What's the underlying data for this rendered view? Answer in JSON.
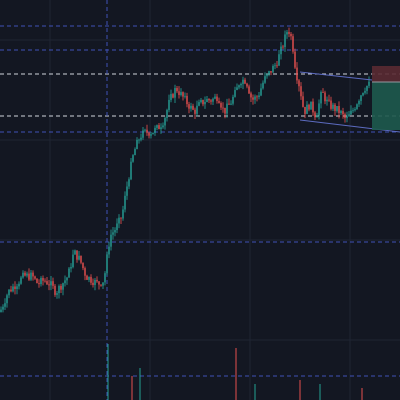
{
  "colors": {
    "background": "#131722",
    "grid": "#1f2433",
    "up": "#26a69a",
    "down": "#ef5350",
    "horizontal_line_blue": "#3f51b5",
    "horizontal_line_white": "#d1d4dc",
    "vertical_line": "#3f51b5",
    "channel_line": "#5c6bc0",
    "position_profit": "#1e5a4e",
    "position_loss": "#5a2a32"
  },
  "chart_data": {
    "type": "candlestick",
    "xlabel": "",
    "ylabel": "",
    "grid": true,
    "ylim": [
      0,
      100
    ],
    "trend": [
      [
        0,
        22
      ],
      [
        8,
        27
      ],
      [
        16,
        29
      ],
      [
        24,
        31
      ],
      [
        32,
        31
      ],
      [
        38,
        29
      ],
      [
        44,
        30
      ],
      [
        50,
        29
      ],
      [
        56,
        27
      ],
      [
        62,
        29
      ],
      [
        68,
        31
      ],
      [
        74,
        37
      ],
      [
        80,
        35
      ],
      [
        86,
        31
      ],
      [
        92,
        30
      ],
      [
        98,
        29
      ],
      [
        104,
        30
      ],
      [
        110,
        41
      ],
      [
        116,
        43
      ],
      [
        122,
        46
      ],
      [
        128,
        55
      ],
      [
        134,
        62
      ],
      [
        140,
        66
      ],
      [
        146,
        67
      ],
      [
        152,
        67
      ],
      [
        158,
        68
      ],
      [
        164,
        70
      ],
      [
        170,
        75
      ],
      [
        176,
        78
      ],
      [
        182,
        76
      ],
      [
        188,
        74
      ],
      [
        194,
        72
      ],
      [
        200,
        74
      ],
      [
        206,
        75
      ],
      [
        212,
        75
      ],
      [
        218,
        76
      ],
      [
        224,
        72
      ],
      [
        230,
        74
      ],
      [
        236,
        77
      ],
      [
        240,
        80
      ],
      [
        246,
        80
      ],
      [
        252,
        75
      ],
      [
        258,
        76
      ],
      [
        264,
        80
      ],
      [
        270,
        82
      ],
      [
        276,
        84
      ],
      [
        282,
        88
      ],
      [
        288,
        93
      ],
      [
        292,
        90
      ],
      [
        296,
        82
      ],
      [
        300,
        78
      ],
      [
        304,
        72
      ],
      [
        310,
        74
      ],
      [
        316,
        71
      ],
      [
        322,
        77
      ],
      [
        328,
        74
      ],
      [
        334,
        73
      ],
      [
        340,
        72
      ],
      [
        346,
        70
      ],
      [
        352,
        72
      ],
      [
        358,
        75
      ],
      [
        364,
        78
      ],
      [
        370,
        79
      ]
    ],
    "volume_spikes": [
      {
        "x": 108,
        "v": 14
      },
      {
        "x": 132,
        "v": 6
      },
      {
        "x": 140,
        "v": 8
      },
      {
        "x": 236,
        "v": 13
      },
      {
        "x": 255,
        "v": 4
      },
      {
        "x": 300,
        "v": 5
      },
      {
        "x": 320,
        "v": 4
      },
      {
        "x": 362,
        "v": 3
      }
    ],
    "horizontal_levels": [
      {
        "y": 93.5,
        "style": "dashed",
        "color": "horizontal_line_blue"
      },
      {
        "y": 87.5,
        "style": "dashed",
        "color": "horizontal_line_blue"
      },
      {
        "y": 81.5,
        "style": "dashed",
        "color": "horizontal_line_white"
      },
      {
        "y": 71.0,
        "style": "dashed",
        "color": "horizontal_line_white"
      },
      {
        "y": 67.0,
        "style": "dashed",
        "color": "horizontal_line_blue"
      },
      {
        "y": 39.5,
        "style": "dashed",
        "color": "horizontal_line_blue"
      },
      {
        "y": 6.0,
        "style": "dashed",
        "color": "horizontal_line_blue"
      }
    ],
    "vertical_markers": [
      {
        "x": 107,
        "style": "dashed"
      }
    ],
    "channel": {
      "upper": [
        [
          300,
          82
        ],
        [
          372,
          80
        ]
      ],
      "lower": [
        [
          300,
          70
        ],
        [
          400,
          67
        ]
      ]
    },
    "position": {
      "x_start": 372,
      "entry": 79.5,
      "stop": 83.5,
      "target": 67.5
    }
  }
}
